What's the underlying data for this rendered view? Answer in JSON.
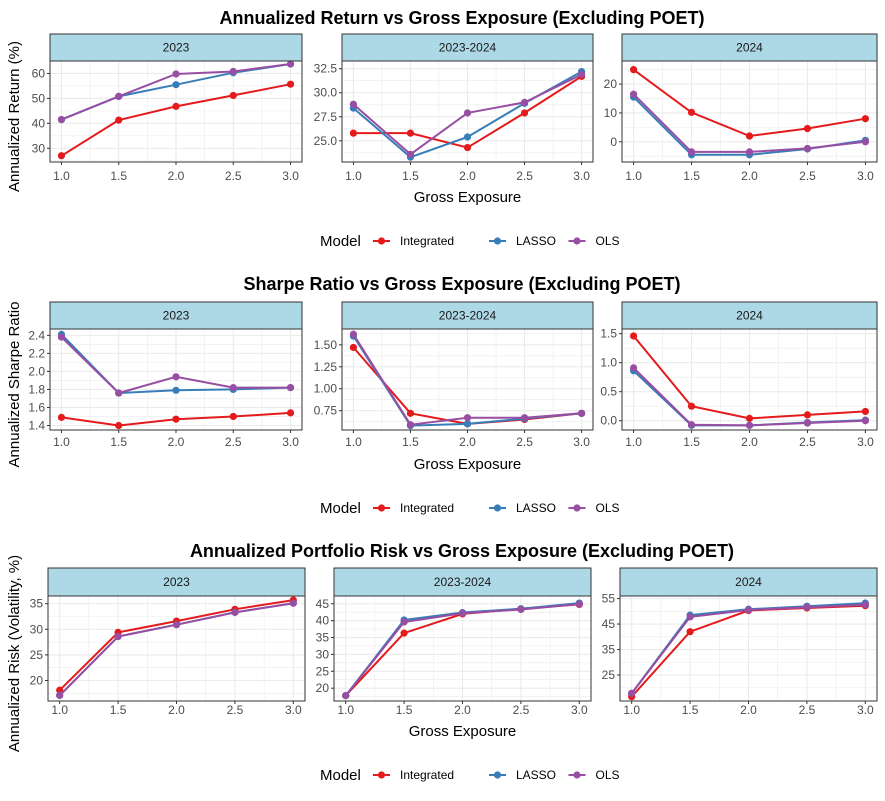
{
  "colors": {
    "Integrated": "#e41a1c",
    "LASSO": "#377eb8",
    "OLS": "#984ea3",
    "strip_fill": "#add8e6",
    "grid": "#ebebeb"
  },
  "legend_title": "Model",
  "chart_data": [
    {
      "type": "line",
      "title": "Annualized Return vs Gross Exposure (Excluding POET)",
      "ylabel": "Annualized Return (%)",
      "xlabel": "Gross Exposure",
      "legend": "bottom",
      "grid": true,
      "x": [
        1.0,
        1.5,
        2.0,
        2.5,
        3.0
      ],
      "panels": [
        {
          "strip": "2023",
          "ylim": [
            24.5,
            65
          ],
          "yticks": [
            30,
            40,
            50,
            60
          ],
          "series": [
            {
              "name": "Integrated",
              "values": [
                27,
                41.3,
                46.8,
                51.2,
                55.7
              ]
            },
            {
              "name": "LASSO",
              "values": [
                41.5,
                50.8,
                55.5,
                60.3,
                63.8
              ]
            },
            {
              "name": "OLS",
              "values": [
                41.5,
                50.8,
                59.8,
                60.8,
                63.8
              ]
            }
          ]
        },
        {
          "strip": "2023-2024",
          "ylim": [
            22.8,
            33.3
          ],
          "yticks": [
            25.0,
            27.5,
            30.0,
            32.5
          ],
          "series": [
            {
              "name": "Integrated",
              "values": [
                25.8,
                25.8,
                24.3,
                27.9,
                31.7
              ]
            },
            {
              "name": "LASSO",
              "values": [
                28.4,
                23.3,
                25.4,
                28.9,
                32.2
              ]
            },
            {
              "name": "OLS",
              "values": [
                28.8,
                23.6,
                27.9,
                29.0,
                31.9
              ]
            }
          ]
        },
        {
          "strip": "2024",
          "ylim": [
            -7,
            28
          ],
          "yticks": [
            0,
            10,
            20
          ],
          "series": [
            {
              "name": "Integrated",
              "values": [
                25,
                10.2,
                2,
                4.6,
                8
              ]
            },
            {
              "name": "LASSO",
              "values": [
                15.5,
                -4.5,
                -4.5,
                -2.5,
                0.5
              ]
            },
            {
              "name": "OLS",
              "values": [
                16.5,
                -3.5,
                -3.5,
                -2.3,
                0
              ]
            }
          ]
        }
      ]
    },
    {
      "type": "line",
      "title": "Sharpe Ratio vs Gross Exposure (Excluding POET)",
      "ylabel": "Annualized Sharpe Ratio",
      "xlabel": "Gross Exposure",
      "legend": "bottom",
      "grid": true,
      "x": [
        1.0,
        1.5,
        2.0,
        2.5,
        3.0
      ],
      "panels": [
        {
          "strip": "2023",
          "ylim": [
            1.35,
            2.47
          ],
          "yticks": [
            1.4,
            1.6,
            1.8,
            2.0,
            2.2,
            2.4
          ],
          "series": [
            {
              "name": "Integrated",
              "values": [
                1.49,
                1.4,
                1.47,
                1.5,
                1.54
              ]
            },
            {
              "name": "LASSO",
              "values": [
                2.41,
                1.76,
                1.79,
                1.8,
                1.82
              ]
            },
            {
              "name": "OLS",
              "values": [
                2.38,
                1.76,
                1.94,
                1.82,
                1.82
              ]
            }
          ]
        },
        {
          "strip": "2023-2024",
          "ylim": [
            0.53,
            1.68
          ],
          "yticks": [
            0.75,
            1.0,
            1.25,
            1.5
          ],
          "series": [
            {
              "name": "Integrated",
              "values": [
                1.47,
                0.72,
                0.6,
                0.65,
                0.72
              ]
            },
            {
              "name": "LASSO",
              "values": [
                1.6,
                0.58,
                0.6,
                0.66,
                0.72
              ]
            },
            {
              "name": "OLS",
              "values": [
                1.62,
                0.59,
                0.67,
                0.67,
                0.72
              ]
            }
          ]
        },
        {
          "strip": "2024",
          "ylim": [
            -0.16,
            1.58
          ],
          "yticks": [
            0.0,
            0.5,
            1.0,
            1.5
          ],
          "series": [
            {
              "name": "Integrated",
              "values": [
                1.46,
                0.25,
                0.04,
                0.1,
                0.16
              ]
            },
            {
              "name": "LASSO",
              "values": [
                0.86,
                -0.08,
                -0.08,
                -0.03,
                0.01
              ]
            },
            {
              "name": "OLS",
              "values": [
                0.91,
                -0.07,
                -0.08,
                -0.04,
                0.0
              ]
            }
          ]
        }
      ]
    },
    {
      "type": "line",
      "title": "Annualized Portfolio Risk vs Gross Exposure (Excluding POET)",
      "ylabel": "Annualized Risk (Volatility, %)",
      "xlabel": "Gross Exposure",
      "legend": "bottom",
      "grid": true,
      "x": [
        1.0,
        1.5,
        2.0,
        2.5,
        3.0
      ],
      "panels": [
        {
          "strip": "2023",
          "ylim": [
            16,
            36.5
          ],
          "yticks": [
            20,
            25,
            30,
            35
          ],
          "series": [
            {
              "name": "Integrated",
              "values": [
                18.1,
                29.4,
                31.6,
                33.9,
                35.7
              ]
            },
            {
              "name": "LASSO",
              "values": [
                17.1,
                28.6,
                30.9,
                33.3,
                35.1
              ]
            },
            {
              "name": "OLS",
              "values": [
                17.1,
                28.6,
                30.9,
                33.3,
                35.1
              ]
            }
          ]
        },
        {
          "strip": "2023-2024",
          "ylim": [
            16.2,
            47.3
          ],
          "yticks": [
            20,
            25,
            30,
            35,
            40,
            45
          ],
          "series": [
            {
              "name": "Integrated",
              "values": [
                17.8,
                36.3,
                42,
                43.5,
                44.8
              ]
            },
            {
              "name": "LASSO",
              "values": [
                17.8,
                40.2,
                42.4,
                43.5,
                45.2
              ]
            },
            {
              "name": "OLS",
              "values": [
                17.8,
                39.6,
                42.2,
                43.3,
                44.9
              ]
            }
          ]
        },
        {
          "strip": "2024",
          "ylim": [
            14.8,
            56
          ],
          "yticks": [
            25,
            35,
            45,
            55
          ],
          "series": [
            {
              "name": "Integrated",
              "values": [
                16.5,
                42,
                50.3,
                51.3,
                52.2
              ]
            },
            {
              "name": "LASSO",
              "values": [
                17.8,
                48.5,
                50.8,
                52,
                53.2
              ]
            },
            {
              "name": "OLS",
              "values": [
                17.8,
                47.8,
                50.5,
                51.6,
                52.6
              ]
            }
          ]
        }
      ]
    }
  ]
}
